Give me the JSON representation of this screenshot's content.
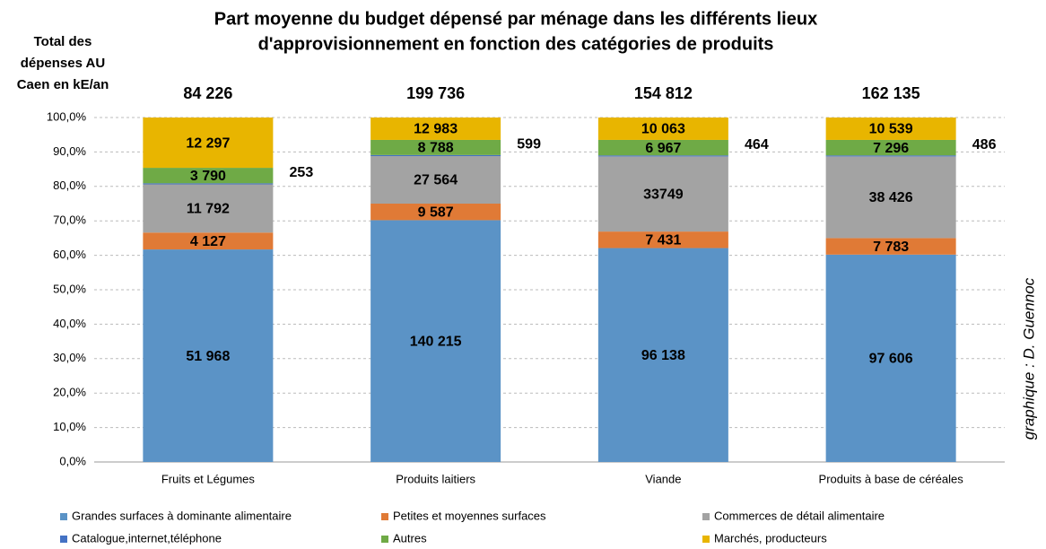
{
  "chart_data": {
    "type": "bar",
    "stack": "percent",
    "title": [
      "Part moyenne du budget dépensé par ménage dans les différents lieux",
      "d'approvisionnement en fonction des catégories de produits"
    ],
    "totals_label": [
      "Total des",
      "dépenses AU",
      "Caen en kE/an"
    ],
    "credit": "graphique : D. Guennoc",
    "categories": [
      "Fruits et Légumes",
      "Produits laitiers",
      "Viande",
      "Produits à base de céréales"
    ],
    "totals": [
      84226,
      199736,
      154812,
      162135
    ],
    "totals_labels": [
      "84 226",
      "199 736",
      "154 812",
      "162 135"
    ],
    "series": [
      {
        "name": "Grandes surfaces à dominante alimentaire",
        "color": "#5b93c6",
        "values": [
          51968,
          140215,
          96138,
          97606
        ],
        "value_labels": [
          "51 968",
          "140 215",
          "96 138",
          "97 606"
        ]
      },
      {
        "name": "Petites et moyennes surfaces",
        "color": "#e07a36",
        "values": [
          4127,
          9587,
          7431,
          7783
        ],
        "value_labels": [
          "4 127",
          "9 587",
          "7 431",
          "7 783"
        ]
      },
      {
        "name": "Commerces de détail alimentaire",
        "color": "#a3a3a3",
        "values": [
          11792,
          27564,
          33749,
          38426
        ],
        "value_labels": [
          "11 792",
          "27 564",
          "33749",
          "38 426"
        ]
      },
      {
        "name": "Catalogue,internet,téléphone",
        "color": "#4472c4",
        "values": [
          253,
          599,
          464,
          486
        ],
        "label_outside": true
      },
      {
        "name": "Autres",
        "color": "#6faa46",
        "values": [
          3790,
          8788,
          6967,
          7296
        ],
        "value_labels": [
          "3 790",
          "8 788",
          "6 967",
          "7 296"
        ]
      },
      {
        "name": "Marchés, producteurs",
        "color": "#e8b500",
        "values": [
          12297,
          12983,
          10063,
          10539
        ],
        "value_labels": [
          "12 297",
          "12 983",
          "10 063",
          "10 539"
        ]
      }
    ],
    "ylim": [
      0,
      100
    ],
    "yticks": [
      {
        "value": 0,
        "label": "0,0%"
      },
      {
        "value": 10,
        "label": "10,0%"
      },
      {
        "value": 20,
        "label": "20,0%"
      },
      {
        "value": 30,
        "label": "30,0%"
      },
      {
        "value": 40,
        "label": "40,0%"
      },
      {
        "value": 50,
        "label": "50,0%"
      },
      {
        "value": 60,
        "label": "60,0%"
      },
      {
        "value": 70,
        "label": "70,0%"
      },
      {
        "value": 80,
        "label": "80,0%"
      },
      {
        "value": 90,
        "label": "90,0%"
      },
      {
        "value": 100,
        "label": "100,0%"
      }
    ],
    "grid": true,
    "legend": "bottom"
  }
}
